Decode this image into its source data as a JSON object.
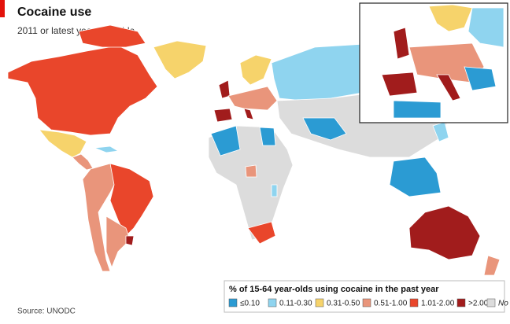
{
  "header": {
    "title": "Cocaine use",
    "subtitle": "2011 or latest year available"
  },
  "legend": {
    "title": "% of 15-64 year-olds using cocaine in the past year",
    "items": [
      {
        "label": "≤0.10",
        "color": "#2b9bd3"
      },
      {
        "label": "0.11-0.30",
        "color": "#8fd4ef"
      },
      {
        "label": "0.31-0.50",
        "color": "#f6d36b"
      },
      {
        "label": "0.51-1.00",
        "color": "#e9957b"
      },
      {
        "label": "1.01-2.00",
        "color": "#e9462b"
      },
      {
        "label": ">2.00",
        "color": "#a11c1c"
      },
      {
        "label": "No data",
        "color": "#dcdcdc"
      }
    ]
  },
  "source": "Source: UNODC"
}
